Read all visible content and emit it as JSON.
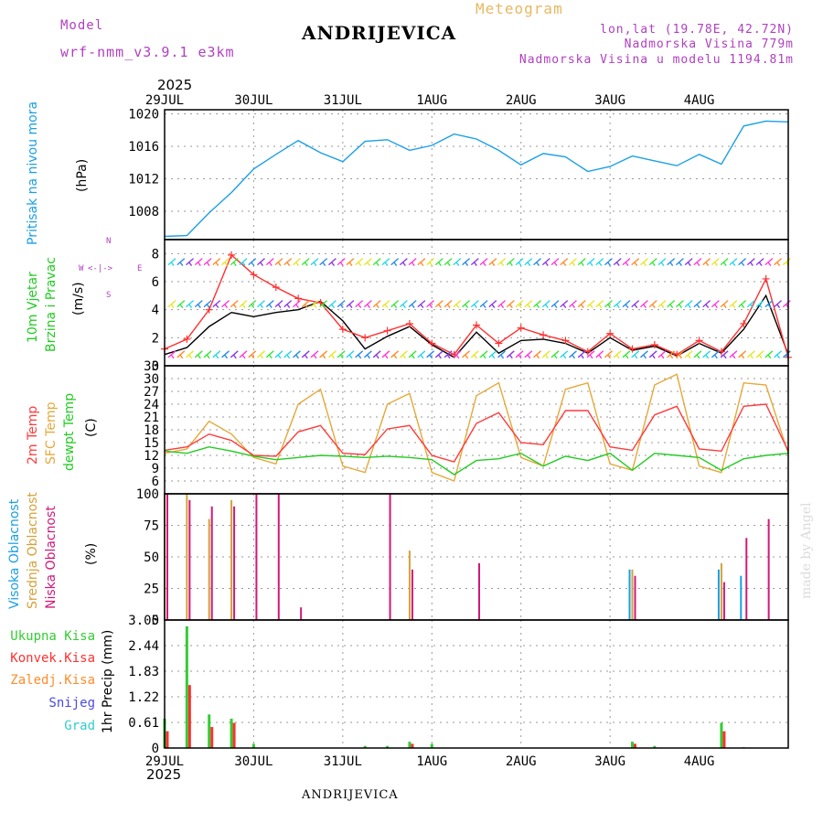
{
  "header": {
    "model_label": "Model",
    "model_name": "wrf-nmm_v3.9.1 e3km",
    "location": "ANDRIJEVICA",
    "meteogram_label": "Meteogram",
    "lonlat": "lon,lat (19.78E, 42.72N)",
    "elevation": "Nadmorska Visina 779m",
    "model_elevation": "Nadmorska Visina u modelu 1194.81m",
    "year_top": "2025",
    "year_bottom": "2025",
    "footer_location": "ANDRIJEVICA",
    "credit": "made by Angel"
  },
  "colors": {
    "pressure": "#1aa0e6",
    "wind_speed": "#000000",
    "wind_gust": "#ff3030",
    "temp_2m": "#ff3b3b",
    "temp_sfc": "#e6a83a",
    "temp_dew": "#22cc22",
    "cloud_high": "#1aa0e6",
    "cloud_mid": "#d4a23a",
    "cloud_low": "#d0197a",
    "precip_total": "#33cc33",
    "precip_conv": "#ff3030",
    "precip_strat": "#ff8c2a",
    "precip_snow": "#4a4ae0",
    "precip_hail": "#33cccc"
  },
  "labels": {
    "pressure": [
      "Pritisak na nivou mora",
      "(hPa)"
    ],
    "wind": [
      "10m Vjetar",
      "Brzina i Pravac",
      "(m/s)"
    ],
    "compass": [
      "N",
      "W",
      "E",
      "S"
    ],
    "temp": [
      "2m Temp",
      "SFC Temp",
      "dewpt Temp",
      "(C)"
    ],
    "cloud": [
      "Visoka Oblacnost",
      "Srednja Oblacnost",
      "Niska Oblacnost",
      "(%)"
    ],
    "precip_legend": [
      "Ukupna Kisa",
      "Konvek.Kisa",
      "Zaledj.Kisa",
      "Snijeg",
      "Grad"
    ],
    "precip_unit": "1hr Precip (mm)"
  },
  "chart_data": [
    {
      "type": "line",
      "title": "Pritisak na nivou mora",
      "ylabel": "(hPa)",
      "x_categories": [
        "29JUL",
        "30JUL",
        "31JUL",
        "1AUG",
        "2AUG",
        "3AUG",
        "4AUG"
      ],
      "ylim": [
        1004.5,
        1020.5
      ],
      "yticks": [
        1008,
        1012,
        1016,
        1020
      ],
      "x_hours": [
        0,
        6,
        12,
        18,
        24,
        30,
        36,
        42,
        48,
        54,
        60,
        66,
        72,
        78,
        84,
        90,
        96,
        102,
        108,
        114,
        120,
        126,
        132,
        138,
        144,
        150,
        156,
        162,
        168
      ],
      "series": [
        {
          "name": "Pritisak",
          "values": [
            1004.9,
            1005.0,
            1007.8,
            1010.3,
            1013.2,
            1015.0,
            1016.7,
            1015.2,
            1014.1,
            1016.6,
            1016.8,
            1015.5,
            1016.1,
            1017.5,
            1016.9,
            1015.5,
            1013.7,
            1015.1,
            1014.7,
            1012.9,
            1013.5,
            1014.8,
            1014.2,
            1013.6,
            1015.0,
            1013.8,
            1018.5,
            1019.1,
            1019.0
          ]
        }
      ]
    },
    {
      "type": "line",
      "title": "10m Vjetar Brzina i Pravac",
      "ylabel": "(m/s)",
      "ylim": [
        0,
        9
      ],
      "yticks": [
        0,
        2,
        4,
        6,
        8
      ],
      "x_hours": [
        0,
        6,
        12,
        18,
        24,
        30,
        36,
        42,
        48,
        54,
        60,
        66,
        72,
        78,
        84,
        90,
        96,
        102,
        108,
        114,
        120,
        126,
        132,
        138,
        144,
        150,
        156,
        162,
        168
      ],
      "series": [
        {
          "name": "speed",
          "values": [
            0.8,
            1.3,
            2.8,
            3.8,
            3.5,
            3.8,
            4.0,
            4.6,
            3.2,
            1.2,
            2.1,
            2.8,
            1.5,
            0.6,
            2.4,
            0.9,
            1.8,
            1.9,
            1.6,
            0.9,
            2.0,
            1.1,
            1.4,
            0.7,
            1.6,
            0.9,
            2.6,
            5.0,
            0.8
          ]
        },
        {
          "name": "gust",
          "values": [
            1.2,
            1.9,
            4.0,
            7.9,
            6.5,
            5.6,
            4.8,
            4.5,
            2.6,
            2.0,
            2.5,
            3.0,
            1.6,
            0.8,
            2.9,
            1.6,
            2.7,
            2.2,
            1.8,
            1.0,
            2.3,
            1.2,
            1.5,
            0.8,
            1.8,
            1.0,
            3.0,
            6.2,
            0.6
          ]
        }
      ]
    },
    {
      "type": "line",
      "title": "Temperature",
      "ylabel": "(C)",
      "ylim": [
        3,
        33
      ],
      "yticks": [
        6,
        9,
        12,
        15,
        18,
        21,
        24,
        27,
        30,
        33
      ],
      "x_hours": [
        0,
        6,
        12,
        18,
        24,
        30,
        36,
        42,
        48,
        54,
        60,
        66,
        72,
        78,
        84,
        90,
        96,
        102,
        108,
        114,
        120,
        126,
        132,
        138,
        144,
        150,
        156,
        162,
        168
      ],
      "series": [
        {
          "name": "2m Temp",
          "values": [
            13.2,
            14.0,
            17.0,
            15.5,
            12.0,
            11.8,
            17.5,
            19.0,
            12.5,
            12.2,
            18.2,
            19.0,
            12.0,
            10.5,
            19.5,
            22.0,
            15.0,
            14.5,
            22.5,
            22.5,
            14.0,
            13.2,
            21.5,
            23.5,
            13.5,
            13.0,
            23.5,
            24.0,
            13.0
          ]
        },
        {
          "name": "SFC Temp",
          "values": [
            12.5,
            13.5,
            20.0,
            17.0,
            11.5,
            10.0,
            24.0,
            27.5,
            9.5,
            8.0,
            24.0,
            26.5,
            8.0,
            6.0,
            26.0,
            29.0,
            11.5,
            9.5,
            27.5,
            29.0,
            10.0,
            8.5,
            28.5,
            31.0,
            9.5,
            8.0,
            29.0,
            28.5,
            12.5
          ]
        },
        {
          "name": "dewpt Temp",
          "values": [
            13.0,
            12.5,
            14.0,
            13.0,
            11.8,
            11.0,
            11.5,
            12.0,
            11.8,
            11.5,
            11.8,
            11.5,
            11.0,
            7.5,
            10.8,
            11.2,
            12.5,
            9.5,
            11.8,
            10.8,
            12.5,
            8.5,
            12.5,
            12.0,
            11.5,
            8.5,
            11.2,
            12.0,
            12.5
          ]
        }
      ]
    },
    {
      "type": "bar",
      "title": "Oblacnost",
      "ylabel": "(%)",
      "ylim": [
        0,
        100
      ],
      "yticks": [
        0,
        25,
        50,
        75,
        100
      ],
      "x_hours": [
        0,
        6,
        12,
        18,
        24,
        30,
        36,
        42,
        48,
        54,
        60,
        66,
        72,
        78,
        84,
        90,
        96,
        102,
        108,
        114,
        120,
        126,
        132,
        138,
        144,
        150,
        156,
        162,
        168
      ],
      "series": [
        {
          "name": "Visoka Oblacnost",
          "values": [
            0,
            0,
            0,
            0,
            0,
            0,
            0,
            0,
            0,
            0,
            0,
            0,
            0,
            0,
            0,
            0,
            0,
            0,
            0,
            0,
            0,
            40,
            0,
            0,
            0,
            40,
            35,
            0,
            0
          ]
        },
        {
          "name": "Srednja Oblacnost",
          "values": [
            100,
            100,
            80,
            95,
            0,
            0,
            0,
            0,
            0,
            0,
            0,
            55,
            0,
            0,
            0,
            0,
            0,
            0,
            0,
            0,
            0,
            40,
            0,
            0,
            0,
            45,
            0,
            0,
            0
          ]
        },
        {
          "name": "Niska Oblacnost",
          "values": [
            100,
            95,
            90,
            90,
            100,
            100,
            10,
            0,
            0,
            0,
            100,
            40,
            0,
            0,
            45,
            0,
            0,
            0,
            0,
            0,
            0,
            35,
            0,
            0,
            0,
            30,
            65,
            80,
            0
          ]
        }
      ]
    },
    {
      "type": "bar",
      "title": "1hr Precip",
      "ylabel": "1hr Precip (mm)",
      "ylim": [
        0,
        3.05
      ],
      "yticks": [
        0,
        0.61,
        1.22,
        1.83,
        2.44,
        3.05
      ],
      "x_hours": [
        0,
        6,
        12,
        18,
        24,
        30,
        36,
        42,
        48,
        54,
        60,
        66,
        72,
        78,
        84,
        90,
        96,
        102,
        108,
        114,
        120,
        126,
        132,
        138,
        144,
        150,
        156,
        162,
        168
      ],
      "series": [
        {
          "name": "Ukupna Kisa",
          "values": [
            0.7,
            2.9,
            0.8,
            0.7,
            0.1,
            0,
            0,
            0,
            0,
            0.05,
            0.05,
            0.15,
            0.1,
            0,
            0,
            0,
            0,
            0,
            0,
            0,
            0,
            0.15,
            0.05,
            0,
            0,
            0.6,
            0.02,
            0,
            0
          ]
        },
        {
          "name": "Konvek.Kisa",
          "values": [
            0.4,
            1.5,
            0.5,
            0.6,
            0,
            0,
            0,
            0,
            0,
            0,
            0,
            0.1,
            0,
            0,
            0,
            0,
            0,
            0,
            0,
            0,
            0,
            0.1,
            0,
            0,
            0,
            0.4,
            0,
            0,
            0
          ]
        }
      ]
    }
  ]
}
